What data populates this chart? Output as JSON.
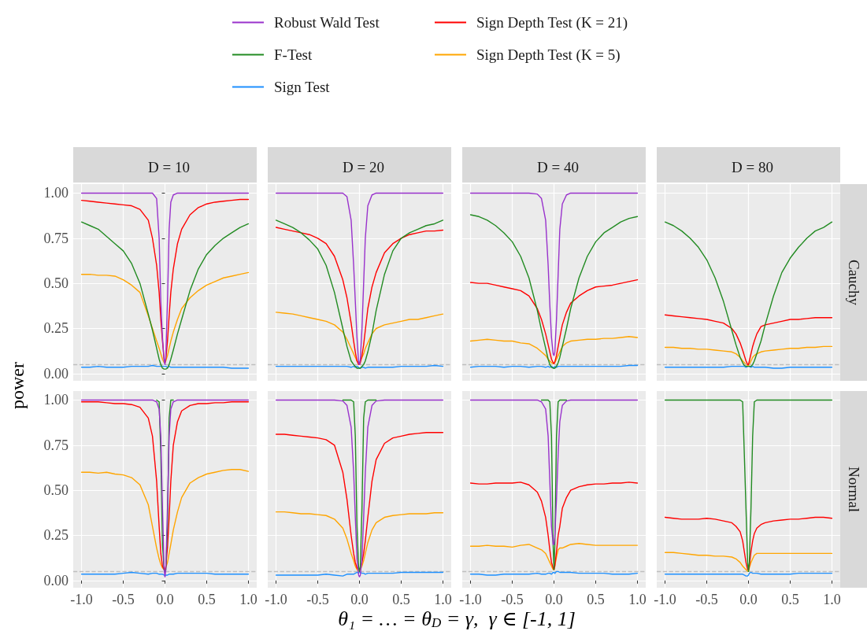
{
  "chart_data": [
    {
      "type": "line",
      "title": "D = 10",
      "legend": "top",
      "xlabel": "θ₁ = … = θ$_{D}$ = γ,  γ ∈ [-1, 1]",
      "ylabel": "power",
      "tick_labels": "y",
      "grid": true,
      "x": [
        -1,
        -0.9,
        -0.8,
        -0.7,
        -0.6,
        -0.5,
        -0.4,
        -0.3,
        -0.2,
        -0.15,
        -0.1,
        -0.07,
        -0.05,
        -0.03,
        -0.01,
        0,
        0.01,
        0.03,
        0.05,
        0.07,
        0.1,
        0.15,
        0.2,
        0.3,
        0.4,
        0.5,
        0.6,
        0.7,
        0.8,
        0.9,
        1
      ],
      "xlim": [
        -1.1,
        1.1
      ],
      "xticks": [
        -1,
        -0.5,
        0,
        0.5,
        1
      ],
      "ylim": [
        -0.04,
        1.05
      ],
      "yticks": [
        {
          "value": 0,
          "label": "0.00"
        },
        {
          "value": 0.25,
          "label": "0.25"
        },
        {
          "value": 0.5,
          "label": "0.50"
        },
        {
          "value": 0.75,
          "label": "0.75"
        },
        {
          "value": 1,
          "label": "1.00"
        }
      ],
      "ref_lines": [
        {
          "axis": "y",
          "value": 0.05,
          "color": "#bebebe",
          "line_style": "dashed"
        }
      ],
      "series": [
        {
          "name": "Robust Wald Test",
          "color": "#9932cc",
          "values": [
            1,
            1,
            1,
            1,
            1,
            1,
            1,
            1,
            1,
            1,
            0.97,
            0.75,
            0.4,
            0.2,
            0.07,
            0.05,
            0.1,
            0.4,
            0.8,
            0.95,
            0.99,
            1,
            1,
            1,
            1,
            1,
            1,
            1,
            1,
            1,
            1
          ]
        },
        {
          "name": "F-Test",
          "color": "#228b22",
          "values": [
            0.84,
            0.82,
            0.8,
            0.76,
            0.72,
            0.68,
            0.61,
            0.5,
            0.33,
            0.24,
            0.14,
            0.08,
            0.05,
            0.03,
            0.025,
            0.025,
            0.025,
            0.03,
            0.05,
            0.08,
            0.13,
            0.22,
            0.3,
            0.46,
            0.58,
            0.66,
            0.71,
            0.75,
            0.78,
            0.81,
            0.83
          ]
        },
        {
          "name": "Sign Test",
          "color": "#1e90ff",
          "values": [
            0.035,
            0.035,
            0.04,
            0.035,
            0.035,
            0.035,
            0.04,
            0.04,
            0.04,
            0.045,
            0.04,
            0.04,
            0.04,
            0.04,
            0.04,
            0.04,
            0.04,
            0.035,
            0.04,
            0.035,
            0.035,
            0.035,
            0.035,
            0.035,
            0.035,
            0.035,
            0.035,
            0.035,
            0.03,
            0.03,
            0.03
          ]
        },
        {
          "name": "Sign Depth Test (K = 21)",
          "color": "#ff0000",
          "values": [
            0.96,
            0.955,
            0.95,
            0.945,
            0.94,
            0.935,
            0.93,
            0.91,
            0.85,
            0.75,
            0.6,
            0.45,
            0.3,
            0.18,
            0.08,
            0.06,
            0.08,
            0.18,
            0.32,
            0.45,
            0.58,
            0.72,
            0.8,
            0.88,
            0.92,
            0.94,
            0.95,
            0.955,
            0.96,
            0.965,
            0.965
          ]
        },
        {
          "name": "Sign Depth Test (K = 5)",
          "color": "#ffa500",
          "values": [
            0.55,
            0.55,
            0.545,
            0.545,
            0.54,
            0.52,
            0.49,
            0.45,
            0.32,
            0.25,
            0.18,
            0.14,
            0.11,
            0.08,
            0.06,
            0.06,
            0.07,
            0.1,
            0.14,
            0.18,
            0.23,
            0.3,
            0.36,
            0.42,
            0.46,
            0.49,
            0.51,
            0.53,
            0.54,
            0.55,
            0.56
          ]
        }
      ]
    },
    {
      "type": "line",
      "title": "D = 20",
      "tick_labels": false,
      "grid": true,
      "x": [
        -1,
        -0.9,
        -0.8,
        -0.7,
        -0.6,
        -0.5,
        -0.4,
        -0.3,
        -0.2,
        -0.15,
        -0.1,
        -0.07,
        -0.05,
        -0.03,
        -0.01,
        0,
        0.01,
        0.03,
        0.05,
        0.07,
        0.1,
        0.15,
        0.2,
        0.3,
        0.4,
        0.5,
        0.6,
        0.7,
        0.8,
        0.9,
        1
      ],
      "xlim": [
        -1.1,
        1.1
      ],
      "xticks": [
        -1,
        -0.5,
        0,
        0.5,
        1
      ],
      "ylim": [
        -0.04,
        1.05
      ],
      "yticks": [
        0,
        0.25,
        0.5,
        0.75,
        1
      ],
      "ref_lines": [
        {
          "axis": "y",
          "value": 0.05,
          "color": "#bebebe",
          "line_style": "dashed"
        }
      ],
      "series": [
        {
          "color": "#9932cc",
          "values": [
            1,
            1,
            1,
            1,
            1,
            1,
            1,
            1,
            1,
            0.98,
            0.85,
            0.6,
            0.4,
            0.2,
            0.06,
            0.05,
            0.08,
            0.25,
            0.5,
            0.75,
            0.93,
            0.99,
            1,
            1,
            1,
            1,
            1,
            1,
            1,
            1,
            1
          ]
        },
        {
          "color": "#228b22",
          "values": [
            0.85,
            0.83,
            0.81,
            0.78,
            0.74,
            0.69,
            0.6,
            0.45,
            0.25,
            0.15,
            0.07,
            0.05,
            0.04,
            0.03,
            0.03,
            0.03,
            0.03,
            0.04,
            0.05,
            0.07,
            0.12,
            0.22,
            0.35,
            0.55,
            0.68,
            0.75,
            0.78,
            0.8,
            0.82,
            0.83,
            0.85
          ]
        },
        {
          "color": "#1e90ff",
          "values": [
            0.04,
            0.04,
            0.04,
            0.04,
            0.04,
            0.04,
            0.04,
            0.04,
            0.04,
            0.04,
            0.035,
            0.04,
            0.035,
            0.04,
            0.035,
            0.03,
            0.03,
            0.035,
            0.035,
            0.03,
            0.035,
            0.035,
            0.035,
            0.035,
            0.035,
            0.04,
            0.04,
            0.04,
            0.04,
            0.045,
            0.04
          ]
        },
        {
          "color": "#ff0000",
          "values": [
            0.81,
            0.8,
            0.79,
            0.78,
            0.77,
            0.75,
            0.72,
            0.65,
            0.52,
            0.42,
            0.28,
            0.18,
            0.12,
            0.07,
            0.05,
            0.05,
            0.06,
            0.1,
            0.16,
            0.24,
            0.36,
            0.48,
            0.56,
            0.67,
            0.72,
            0.75,
            0.77,
            0.78,
            0.79,
            0.79,
            0.795
          ]
        },
        {
          "color": "#ffa500",
          "values": [
            0.34,
            0.335,
            0.33,
            0.32,
            0.31,
            0.3,
            0.29,
            0.27,
            0.23,
            0.19,
            0.14,
            0.11,
            0.09,
            0.07,
            0.06,
            0.06,
            0.07,
            0.09,
            0.11,
            0.14,
            0.17,
            0.22,
            0.25,
            0.27,
            0.28,
            0.29,
            0.3,
            0.3,
            0.31,
            0.32,
            0.33
          ]
        }
      ]
    },
    {
      "type": "line",
      "title": "D = 40",
      "tick_labels": false,
      "grid": true,
      "x": [
        -1,
        -0.9,
        -0.8,
        -0.7,
        -0.6,
        -0.5,
        -0.4,
        -0.3,
        -0.2,
        -0.15,
        -0.1,
        -0.07,
        -0.05,
        -0.03,
        -0.01,
        0,
        0.01,
        0.03,
        0.05,
        0.07,
        0.1,
        0.15,
        0.2,
        0.3,
        0.4,
        0.5,
        0.6,
        0.7,
        0.8,
        0.9,
        1
      ],
      "xlim": [
        -1.1,
        1.1
      ],
      "xticks": [
        -1,
        -0.5,
        0,
        0.5,
        1
      ],
      "ylim": [
        -0.04,
        1.05
      ],
      "yticks": [
        0,
        0.25,
        0.5,
        0.75,
        1
      ],
      "ref_lines": [
        {
          "axis": "y",
          "value": 0.05,
          "color": "#bebebe",
          "line_style": "dashed"
        }
      ],
      "series": [
        {
          "color": "#9932cc",
          "values": [
            1,
            1,
            1,
            1,
            1,
            1,
            1,
            1,
            0.995,
            0.97,
            0.85,
            0.6,
            0.38,
            0.2,
            0.11,
            0.1,
            0.12,
            0.3,
            0.55,
            0.8,
            0.94,
            0.99,
            1,
            1,
            1,
            1,
            1,
            1,
            1,
            1,
            1
          ]
        },
        {
          "color": "#228b22",
          "values": [
            0.88,
            0.87,
            0.85,
            0.82,
            0.78,
            0.73,
            0.65,
            0.53,
            0.35,
            0.24,
            0.14,
            0.08,
            0.05,
            0.035,
            0.03,
            0.03,
            0.03,
            0.04,
            0.06,
            0.09,
            0.15,
            0.25,
            0.36,
            0.53,
            0.65,
            0.73,
            0.78,
            0.81,
            0.84,
            0.86,
            0.87
          ]
        },
        {
          "color": "#1e90ff",
          "values": [
            0.035,
            0.04,
            0.04,
            0.04,
            0.035,
            0.04,
            0.04,
            0.035,
            0.04,
            0.04,
            0.035,
            0.04,
            0.035,
            0.04,
            0.035,
            0.03,
            0.04,
            0.035,
            0.04,
            0.04,
            0.04,
            0.04,
            0.04,
            0.04,
            0.04,
            0.04,
            0.04,
            0.04,
            0.04,
            0.045,
            0.045
          ]
        },
        {
          "color": "#ff0000",
          "values": [
            0.505,
            0.5,
            0.5,
            0.49,
            0.48,
            0.47,
            0.46,
            0.43,
            0.36,
            0.3,
            0.22,
            0.16,
            0.12,
            0.08,
            0.06,
            0.055,
            0.065,
            0.1,
            0.15,
            0.2,
            0.27,
            0.34,
            0.39,
            0.43,
            0.46,
            0.48,
            0.485,
            0.49,
            0.5,
            0.51,
            0.52
          ]
        },
        {
          "color": "#ffa500",
          "values": [
            0.18,
            0.185,
            0.19,
            0.185,
            0.18,
            0.18,
            0.17,
            0.165,
            0.14,
            0.12,
            0.1,
            0.08,
            0.07,
            0.06,
            0.055,
            0.055,
            0.06,
            0.08,
            0.1,
            0.12,
            0.15,
            0.17,
            0.18,
            0.185,
            0.19,
            0.19,
            0.195,
            0.195,
            0.2,
            0.205,
            0.2
          ]
        }
      ]
    },
    {
      "type": "line",
      "title": "D = 80",
      "annotations": [
        "Cauchy"
      ],
      "tick_labels": false,
      "grid": true,
      "x": [
        -1,
        -0.9,
        -0.8,
        -0.7,
        -0.6,
        -0.5,
        -0.4,
        -0.3,
        -0.2,
        -0.15,
        -0.1,
        -0.07,
        -0.05,
        -0.03,
        -0.01,
        0,
        0.01,
        0.03,
        0.05,
        0.07,
        0.1,
        0.15,
        0.2,
        0.3,
        0.4,
        0.5,
        0.6,
        0.7,
        0.8,
        0.9,
        1
      ],
      "xlim": [
        -1.1,
        1.1
      ],
      "xticks": [
        -1,
        -0.5,
        0,
        0.5,
        1
      ],
      "ylim": [
        -0.04,
        1.05
      ],
      "yticks": [
        0,
        0.25,
        0.5,
        0.75,
        1
      ],
      "ref_lines": [
        {
          "axis": "y",
          "value": 0.05,
          "color": "#bebebe",
          "line_style": "dashed"
        }
      ],
      "series": [
        {
          "color": "#228b22",
          "values": [
            0.84,
            0.82,
            0.79,
            0.75,
            0.7,
            0.63,
            0.53,
            0.4,
            0.24,
            0.16,
            0.09,
            0.06,
            0.045,
            0.04,
            0.04,
            0.04,
            0.04,
            0.04,
            0.05,
            0.07,
            0.11,
            0.18,
            0.27,
            0.43,
            0.56,
            0.64,
            0.7,
            0.75,
            0.79,
            0.81,
            0.84
          ]
        },
        {
          "color": "#1e90ff",
          "values": [
            0.035,
            0.035,
            0.035,
            0.035,
            0.035,
            0.035,
            0.035,
            0.035,
            0.04,
            0.04,
            0.04,
            0.04,
            0.04,
            0.035,
            0.04,
            0.04,
            0.04,
            0.035,
            0.04,
            0.035,
            0.035,
            0.035,
            0.035,
            0.03,
            0.03,
            0.035,
            0.035,
            0.035,
            0.035,
            0.035,
            0.035
          ]
        },
        {
          "color": "#ff0000",
          "values": [
            0.325,
            0.32,
            0.315,
            0.31,
            0.305,
            0.3,
            0.29,
            0.28,
            0.25,
            0.22,
            0.17,
            0.13,
            0.1,
            0.07,
            0.05,
            0.05,
            0.07,
            0.11,
            0.15,
            0.18,
            0.22,
            0.26,
            0.27,
            0.28,
            0.29,
            0.3,
            0.3,
            0.305,
            0.31,
            0.31,
            0.31
          ]
        },
        {
          "color": "#ffa500",
          "values": [
            0.145,
            0.145,
            0.14,
            0.14,
            0.135,
            0.135,
            0.13,
            0.125,
            0.12,
            0.11,
            0.09,
            0.07,
            0.06,
            0.05,
            0.045,
            0.045,
            0.05,
            0.07,
            0.09,
            0.1,
            0.11,
            0.12,
            0.125,
            0.13,
            0.135,
            0.14,
            0.14,
            0.145,
            0.145,
            0.15,
            0.15
          ]
        }
      ]
    },
    {
      "type": "line",
      "grid": true,
      "x": [
        -1,
        -0.9,
        -0.8,
        -0.7,
        -0.6,
        -0.5,
        -0.4,
        -0.3,
        -0.2,
        -0.15,
        -0.1,
        -0.07,
        -0.05,
        -0.03,
        -0.01,
        0,
        0.01,
        0.03,
        0.05,
        0.07,
        0.1,
        0.15,
        0.2,
        0.3,
        0.4,
        0.5,
        0.6,
        0.7,
        0.8,
        0.9,
        1
      ],
      "xlim": [
        -1.1,
        1.1
      ],
      "xticks": [
        {
          "value": -1,
          "label": "-1.0"
        },
        {
          "value": -0.5,
          "label": "-0.5"
        },
        {
          "value": 0,
          "label": "0.0"
        },
        {
          "value": 0.5,
          "label": "0.5"
        },
        {
          "value": 1,
          "label": "1.0"
        }
      ],
      "ylim": [
        -0.04,
        1.05
      ],
      "yticks": [
        {
          "value": 0,
          "label": "0.00"
        },
        {
          "value": 0.25,
          "label": "0.25"
        },
        {
          "value": 0.5,
          "label": "0.50"
        },
        {
          "value": 0.75,
          "label": "0.75"
        },
        {
          "value": 1,
          "label": "1.00"
        }
      ],
      "ref_lines": [
        {
          "axis": "y",
          "value": 0.05,
          "color": "#bebebe",
          "line_style": "dashed"
        }
      ],
      "series": [
        {
          "color": "#9932cc",
          "values": [
            1,
            1,
            1,
            1,
            1,
            1,
            1,
            1,
            1,
            1,
            0.99,
            0.95,
            0.8,
            0.4,
            0.06,
            0.02,
            0.06,
            0.4,
            0.8,
            0.95,
            0.99,
            1,
            1,
            1,
            1,
            1,
            1,
            1,
            1,
            1,
            1
          ]
        },
        {
          "color": "#228b22",
          "values": [
            null,
            null,
            null,
            null,
            null,
            null,
            null,
            null,
            null,
            null,
            1,
            0.99,
            0.7,
            0.2,
            0.06,
            0.05,
            0.06,
            0.3,
            0.9,
            1,
            1,
            null,
            null,
            null,
            null,
            null,
            null,
            null,
            null,
            null,
            null
          ]
        },
        {
          "color": "#1e90ff",
          "values": [
            0.035,
            0.035,
            0.035,
            0.035,
            0.035,
            0.04,
            0.045,
            0.04,
            0.035,
            0.04,
            0.04,
            0.035,
            0.035,
            0.035,
            0.03,
            0.025,
            0.03,
            0.03,
            0.035,
            0.035,
            0.035,
            0.04,
            0.04,
            0.04,
            0.04,
            0.04,
            0.035,
            0.035,
            0.035,
            0.035,
            0.035
          ]
        },
        {
          "color": "#ff0000",
          "values": [
            0.99,
            0.99,
            0.99,
            0.985,
            0.98,
            0.98,
            0.975,
            0.96,
            0.9,
            0.8,
            0.55,
            0.3,
            0.15,
            0.08,
            0.06,
            0.06,
            0.08,
            0.18,
            0.35,
            0.55,
            0.75,
            0.88,
            0.94,
            0.97,
            0.98,
            0.98,
            0.985,
            0.985,
            0.99,
            0.99,
            0.99
          ]
        },
        {
          "color": "#ffa500",
          "values": [
            0.6,
            0.6,
            0.595,
            0.6,
            0.59,
            0.585,
            0.57,
            0.53,
            0.42,
            0.3,
            0.18,
            0.12,
            0.09,
            0.07,
            0.06,
            0.06,
            0.07,
            0.1,
            0.15,
            0.2,
            0.28,
            0.38,
            0.46,
            0.54,
            0.57,
            0.59,
            0.6,
            0.61,
            0.615,
            0.615,
            0.605
          ]
        }
      ]
    },
    {
      "type": "line",
      "tick_labels": "x",
      "grid": true,
      "x": [
        -1,
        -0.9,
        -0.8,
        -0.7,
        -0.6,
        -0.5,
        -0.4,
        -0.3,
        -0.2,
        -0.15,
        -0.1,
        -0.07,
        -0.05,
        -0.03,
        -0.01,
        0,
        0.01,
        0.03,
        0.05,
        0.07,
        0.1,
        0.15,
        0.2,
        0.3,
        0.4,
        0.5,
        0.6,
        0.7,
        0.8,
        0.9,
        1
      ],
      "xlim": [
        -1.1,
        1.1
      ],
      "xticks": [
        {
          "value": -1,
          "label": "-1.0"
        },
        {
          "value": -0.5,
          "label": "-0.5"
        },
        {
          "value": 0,
          "label": "0.0"
        },
        {
          "value": 0.5,
          "label": "0.5"
        },
        {
          "value": 1,
          "label": "1.0"
        }
      ],
      "ylim": [
        -0.04,
        1.05
      ],
      "yticks": [
        0,
        0.25,
        0.5,
        0.75,
        1
      ],
      "ref_lines": [
        {
          "axis": "y",
          "value": 0.05,
          "color": "#bebebe",
          "line_style": "dashed"
        }
      ],
      "series": [
        {
          "color": "#9932cc",
          "values": [
            1,
            1,
            1,
            1,
            1,
            1,
            1,
            1,
            0.995,
            0.97,
            0.85,
            0.6,
            0.35,
            0.12,
            0.03,
            0.02,
            0.03,
            0.12,
            0.35,
            0.6,
            0.85,
            0.97,
            0.995,
            1,
            1,
            1,
            1,
            1,
            1,
            1,
            1
          ]
        },
        {
          "color": "#228b22",
          "values": [
            null,
            null,
            null,
            null,
            null,
            null,
            null,
            null,
            1,
            1,
            1,
            0.99,
            0.8,
            0.3,
            0.07,
            0.05,
            0.08,
            0.4,
            0.9,
            0.99,
            1,
            1,
            1,
            null,
            null,
            null,
            null,
            null,
            null,
            null,
            null
          ]
        },
        {
          "color": "#1e90ff",
          "values": [
            0.03,
            0.03,
            0.03,
            0.03,
            0.03,
            0.03,
            0.035,
            0.03,
            0.025,
            0.035,
            0.035,
            0.035,
            0.04,
            0.045,
            0.04,
            0.05,
            0.045,
            0.04,
            0.04,
            0.035,
            0.04,
            0.04,
            0.04,
            0.04,
            0.04,
            0.045,
            0.045,
            0.045,
            0.045,
            0.045,
            0.045
          ]
        },
        {
          "color": "#ff0000",
          "values": [
            0.81,
            0.81,
            0.805,
            0.8,
            0.795,
            0.79,
            0.78,
            0.75,
            0.6,
            0.45,
            0.25,
            0.15,
            0.1,
            0.07,
            0.06,
            0.06,
            0.07,
            0.1,
            0.15,
            0.22,
            0.35,
            0.55,
            0.67,
            0.76,
            0.79,
            0.8,
            0.81,
            0.815,
            0.82,
            0.82,
            0.82
          ]
        },
        {
          "color": "#ffa500",
          "values": [
            0.38,
            0.38,
            0.375,
            0.37,
            0.37,
            0.365,
            0.36,
            0.34,
            0.29,
            0.23,
            0.15,
            0.11,
            0.08,
            0.06,
            0.05,
            0.05,
            0.06,
            0.08,
            0.11,
            0.15,
            0.21,
            0.28,
            0.32,
            0.35,
            0.36,
            0.365,
            0.37,
            0.37,
            0.37,
            0.375,
            0.375
          ]
        }
      ]
    },
    {
      "type": "line",
      "tick_labels": "x",
      "grid": true,
      "x": [
        -1,
        -0.9,
        -0.8,
        -0.7,
        -0.6,
        -0.5,
        -0.4,
        -0.3,
        -0.2,
        -0.15,
        -0.1,
        -0.07,
        -0.05,
        -0.03,
        -0.01,
        0,
        0.01,
        0.03,
        0.05,
        0.07,
        0.1,
        0.15,
        0.2,
        0.3,
        0.4,
        0.5,
        0.6,
        0.7,
        0.8,
        0.9,
        1
      ],
      "xlim": [
        -1.1,
        1.1
      ],
      "xticks": [
        {
          "value": -1,
          "label": "-1.0"
        },
        {
          "value": -0.5,
          "label": "-0.5"
        },
        {
          "value": 0,
          "label": "0.0"
        },
        {
          "value": 0.5,
          "label": "0.5"
        },
        {
          "value": 1,
          "label": "1.0"
        }
      ],
      "ylim": [
        -0.04,
        1.05
      ],
      "yticks": [
        0,
        0.25,
        0.5,
        0.75,
        1
      ],
      "ref_lines": [
        {
          "axis": "y",
          "value": 0.05,
          "color": "#bebebe",
          "line_style": "dashed"
        }
      ],
      "series": [
        {
          "color": "#9932cc",
          "values": [
            1,
            1,
            1,
            1,
            1,
            1,
            1,
            1,
            1,
            0.99,
            0.95,
            0.8,
            0.55,
            0.3,
            0.2,
            0.2,
            0.25,
            0.45,
            0.7,
            0.88,
            0.97,
            0.995,
            1,
            1,
            1,
            1,
            1,
            1,
            1,
            1,
            1
          ]
        },
        {
          "color": "#228b22",
          "values": [
            null,
            null,
            null,
            null,
            null,
            null,
            null,
            null,
            null,
            1,
            1,
            1,
            0.99,
            0.8,
            0.2,
            0.06,
            0.2,
            0.8,
            0.99,
            1,
            1,
            1,
            null,
            null,
            null,
            null,
            null,
            null,
            null,
            null,
            null
          ]
        },
        {
          "color": "#1e90ff",
          "values": [
            0.035,
            0.035,
            0.03,
            0.03,
            0.035,
            0.035,
            0.035,
            0.035,
            0.04,
            0.035,
            0.035,
            0.04,
            0.04,
            0.035,
            0.045,
            0.045,
            0.04,
            0.05,
            0.05,
            0.045,
            0.045,
            0.045,
            0.045,
            0.04,
            0.04,
            0.04,
            0.04,
            0.035,
            0.035,
            0.035,
            0.04
          ]
        },
        {
          "color": "#ff0000",
          "values": [
            0.54,
            0.535,
            0.535,
            0.54,
            0.54,
            0.54,
            0.545,
            0.53,
            0.49,
            0.44,
            0.35,
            0.25,
            0.17,
            0.1,
            0.07,
            0.06,
            0.08,
            0.16,
            0.25,
            0.3,
            0.4,
            0.46,
            0.5,
            0.52,
            0.53,
            0.535,
            0.535,
            0.54,
            0.54,
            0.545,
            0.54
          ]
        },
        {
          "color": "#ffa500",
          "values": [
            0.19,
            0.19,
            0.195,
            0.19,
            0.19,
            0.185,
            0.195,
            0.2,
            0.18,
            0.17,
            0.15,
            0.12,
            0.1,
            0.08,
            0.06,
            0.06,
            0.08,
            0.13,
            0.17,
            0.18,
            0.18,
            0.19,
            0.2,
            0.205,
            0.2,
            0.195,
            0.195,
            0.195,
            0.195,
            0.195,
            0.195
          ]
        }
      ]
    },
    {
      "type": "line",
      "annotations": [
        "Normal"
      ],
      "tick_labels": "x",
      "grid": true,
      "x": [
        -1,
        -0.9,
        -0.8,
        -0.7,
        -0.6,
        -0.5,
        -0.4,
        -0.3,
        -0.2,
        -0.15,
        -0.1,
        -0.07,
        -0.05,
        -0.03,
        -0.01,
        0,
        0.01,
        0.03,
        0.05,
        0.07,
        0.1,
        0.15,
        0.2,
        0.3,
        0.4,
        0.5,
        0.6,
        0.7,
        0.8,
        0.9,
        1
      ],
      "xlim": [
        -1.1,
        1.1
      ],
      "xticks": [
        {
          "value": -1,
          "label": "-1.0"
        },
        {
          "value": -0.5,
          "label": "-0.5"
        },
        {
          "value": 0,
          "label": "0.0"
        },
        {
          "value": 0.5,
          "label": "0.5"
        },
        {
          "value": 1,
          "label": "1.0"
        }
      ],
      "ylim": [
        -0.04,
        1.05
      ],
      "yticks": [
        0,
        0.25,
        0.5,
        0.75,
        1
      ],
      "ref_lines": [
        {
          "axis": "y",
          "value": 0.05,
          "color": "#bebebe",
          "line_style": "dashed"
        }
      ],
      "series": [
        {
          "color": "#228b22",
          "values": [
            1,
            1,
            1,
            1,
            1,
            1,
            1,
            1,
            1,
            1,
            1,
            0.99,
            0.7,
            0.4,
            0.1,
            0.05,
            0.1,
            0.4,
            0.8,
            0.99,
            1,
            1,
            1,
            1,
            1,
            1,
            1,
            1,
            1,
            1,
            1
          ]
        },
        {
          "color": "#1e90ff",
          "values": [
            0.035,
            0.035,
            0.035,
            0.035,
            0.035,
            0.035,
            0.035,
            0.035,
            0.035,
            0.035,
            0.035,
            0.035,
            0.03,
            0.025,
            0.025,
            0.03,
            0.04,
            0.045,
            0.04,
            0.04,
            0.04,
            0.035,
            0.035,
            0.035,
            0.035,
            0.035,
            0.04,
            0.04,
            0.04,
            0.04,
            0.04
          ]
        },
        {
          "color": "#ff0000",
          "values": [
            0.35,
            0.345,
            0.34,
            0.34,
            0.34,
            0.345,
            0.34,
            0.33,
            0.32,
            0.3,
            0.27,
            0.22,
            0.16,
            0.1,
            0.06,
            0.06,
            0.08,
            0.16,
            0.22,
            0.26,
            0.29,
            0.31,
            0.32,
            0.33,
            0.335,
            0.34,
            0.34,
            0.345,
            0.35,
            0.35,
            0.345
          ]
        },
        {
          "color": "#ffa500",
          "values": [
            0.155,
            0.155,
            0.15,
            0.145,
            0.14,
            0.14,
            0.135,
            0.135,
            0.13,
            0.12,
            0.1,
            0.08,
            0.07,
            0.06,
            0.05,
            0.05,
            0.07,
            0.1,
            0.12,
            0.14,
            0.15,
            0.15,
            0.15,
            0.15,
            0.15,
            0.15,
            0.15,
            0.15,
            0.15,
            0.15,
            0.15
          ]
        }
      ]
    }
  ]
}
